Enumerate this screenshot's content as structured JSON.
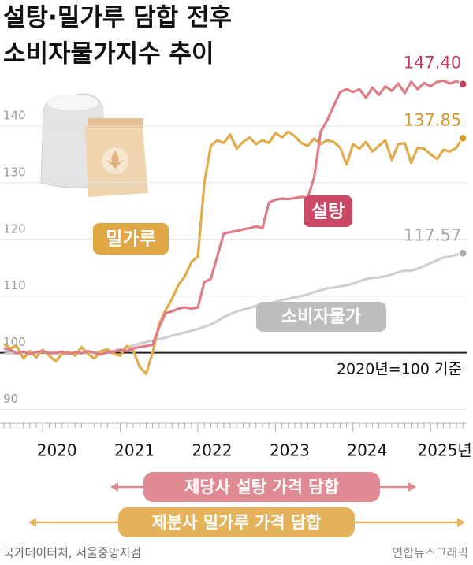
{
  "chart_data": {
    "type": "line",
    "title_lines": [
      "설탕·밀가루 담합 전후",
      "소비자물가지수 추이"
    ],
    "note": "2020년=100 기준",
    "categories": [
      null,
      null,
      null,
      null,
      null,
      null,
      "2020",
      null,
      null,
      null,
      null,
      null,
      null,
      null,
      null,
      null,
      null,
      null,
      "2021",
      null,
      null,
      null,
      null,
      null,
      null,
      null,
      null,
      null,
      null,
      null,
      "2022",
      null,
      null,
      null,
      null,
      null,
      null,
      null,
      null,
      null,
      null,
      null,
      "2023",
      null,
      null,
      null,
      null,
      null,
      null,
      null,
      null,
      null,
      null,
      null,
      "2024",
      null,
      null,
      null,
      null,
      null,
      null,
      null,
      null,
      null,
      null,
      null,
      "2025년",
      null,
      null,
      null,
      null,
      null
    ],
    "ylim": [
      88,
      150
    ],
    "yticks": [
      90,
      100,
      110,
      120,
      130,
      140
    ],
    "grid": true,
    "reference_line": 100,
    "series": [
      {
        "name": "설탕",
        "color": "#de7d86",
        "label_color": "#c63d5e",
        "values": [
          100.8,
          100.5,
          99.9,
          100.2,
          99.8,
          100.1,
          100.3,
          99.9,
          100.0,
          100.2,
          99.8,
          100.1,
          99.9,
          100.3,
          100.0,
          99.7,
          100.1,
          100.2,
          100.5,
          100.3,
          100.8,
          101.0,
          101.2,
          101.4,
          104.5,
          107.0,
          107.3,
          107.8,
          108.0,
          107.8,
          108.0,
          112.5,
          113.0,
          117.0,
          121.0,
          121.3,
          121.5,
          121.8,
          122.0,
          122.3,
          122.0,
          126.5,
          127.0,
          127.2,
          127.1,
          127.3,
          127.5,
          127.4,
          131.0,
          139.0,
          141.0,
          143.5,
          146.0,
          146.5,
          146.0,
          146.5,
          145.0,
          146.8,
          145.5,
          147.0,
          146.2,
          147.5,
          145.8,
          147.8,
          146.5,
          147.6,
          147.0,
          147.8,
          148.0,
          147.5,
          147.9,
          147.4
        ],
        "value_labels": [
          null,
          null,
          null,
          null,
          null,
          null,
          null,
          null,
          null,
          null,
          null,
          null,
          null,
          null,
          null,
          null,
          null,
          null,
          null,
          null,
          null,
          null,
          null,
          null,
          null,
          null,
          null,
          null,
          null,
          null,
          null,
          null,
          null,
          null,
          null,
          null,
          null,
          null,
          null,
          null,
          null,
          null,
          null,
          null,
          null,
          null,
          null,
          null,
          null,
          null,
          null,
          null,
          null,
          null,
          null,
          null,
          null,
          null,
          null,
          null,
          null,
          null,
          null,
          null,
          null,
          null,
          null,
          null,
          null,
          null,
          null,
          "147.40"
        ]
      },
      {
        "name": "밀가루",
        "color": "#e1ab4c",
        "label_color": "#d39a2c",
        "values": [
          101.5,
          100.8,
          101.2,
          99.0,
          100.3,
          99.2,
          100.5,
          99.5,
          98.5,
          99.8,
          100.2,
          99.5,
          101.0,
          99.8,
          99.0,
          100.3,
          100.6,
          99.8,
          99.5,
          101.2,
          100.4,
          97.5,
          96.3,
          100.0,
          105.0,
          107.5,
          109.5,
          112.0,
          113.5,
          116.0,
          117.0,
          130.0,
          136.5,
          137.5,
          137.0,
          138.5,
          136.0,
          137.2,
          138.0,
          136.8,
          137.5,
          137.0,
          138.8,
          138.0,
          139.0,
          138.2,
          137.0,
          136.5,
          137.8,
          136.8,
          137.5,
          137.2,
          136.2,
          133.2,
          136.8,
          136.0,
          137.2,
          135.5,
          136.5,
          137.5,
          134.0,
          136.8,
          137.0,
          133.5,
          136.2,
          136.0,
          135.0,
          134.2,
          135.8,
          135.5,
          136.2,
          137.85
        ],
        "value_labels": [
          null,
          null,
          null,
          null,
          null,
          null,
          null,
          null,
          null,
          null,
          null,
          null,
          null,
          null,
          null,
          null,
          null,
          null,
          null,
          null,
          null,
          null,
          null,
          null,
          null,
          null,
          null,
          null,
          null,
          null,
          null,
          null,
          null,
          null,
          null,
          null,
          null,
          null,
          null,
          null,
          null,
          null,
          null,
          null,
          null,
          null,
          null,
          null,
          null,
          null,
          null,
          null,
          null,
          null,
          null,
          null,
          null,
          null,
          null,
          null,
          null,
          null,
          null,
          null,
          null,
          null,
          null,
          null,
          null,
          null,
          null,
          "137.85"
        ]
      },
      {
        "name": "소비자물가",
        "color": "#cfcfcf",
        "label_color": "#a9a9a9",
        "values": [
          99.8,
          99.9,
          99.9,
          100.0,
          100.0,
          100.1,
          100.2,
          100.1,
          99.9,
          99.7,
          99.8,
          100.0,
          100.0,
          100.1,
          100.1,
          100.2,
          100.1,
          100.3,
          100.6,
          101.0,
          101.3,
          101.6,
          101.9,
          102.2,
          102.4,
          102.7,
          103.0,
          103.3,
          103.6,
          103.9,
          104.2,
          104.6,
          105.0,
          105.6,
          106.3,
          106.8,
          107.3,
          107.6,
          107.9,
          108.3,
          108.4,
          108.6,
          109.0,
          109.3,
          109.5,
          109.8,
          110.0,
          110.3,
          110.7,
          111.0,
          111.4,
          111.5,
          111.7,
          111.9,
          112.2,
          112.6,
          113.0,
          113.2,
          113.3,
          113.5,
          113.8,
          114.2,
          114.5,
          114.5,
          114.8,
          115.3,
          115.8,
          116.3,
          116.8,
          117.0,
          117.3,
          117.57
        ],
        "value_labels": [
          null,
          null,
          null,
          null,
          null,
          null,
          null,
          null,
          null,
          null,
          null,
          null,
          null,
          null,
          null,
          null,
          null,
          null,
          null,
          null,
          null,
          null,
          null,
          null,
          null,
          null,
          null,
          null,
          null,
          null,
          null,
          null,
          null,
          null,
          null,
          null,
          null,
          null,
          null,
          null,
          null,
          null,
          null,
          null,
          null,
          null,
          null,
          null,
          null,
          null,
          null,
          null,
          null,
          null,
          null,
          null,
          null,
          null,
          null,
          null,
          null,
          null,
          null,
          null,
          null,
          null,
          null,
          null,
          null,
          null,
          null,
          "117.57"
        ]
      }
    ],
    "annotations": [
      {
        "text": "제당사 설탕 가격 담합",
        "color": "#e08a93"
      },
      {
        "text": "제분사 밀가루 가격 담합",
        "color": "#e3b25a"
      }
    ],
    "source": "국가데이터처, 서울중앙지검",
    "credit": "연합뉴스그래픽"
  }
}
